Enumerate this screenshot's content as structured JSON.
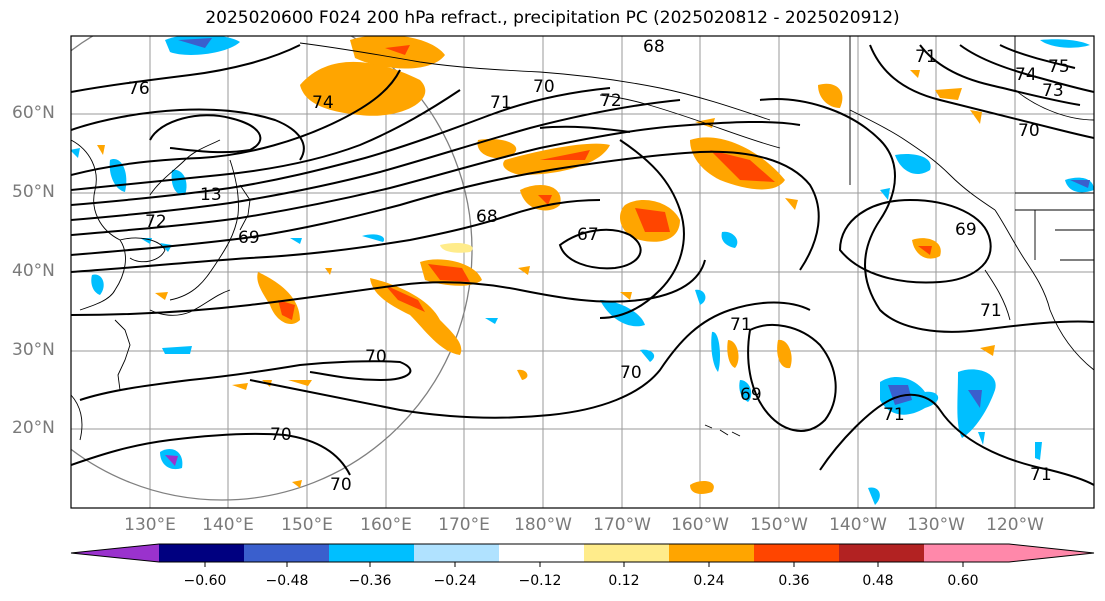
{
  "title": "2025020600 F024 200 hPa refract., precipitation PC (2025020812 - 2025020912)",
  "lat_labels": [
    "60°N",
    "50°N",
    "40°N",
    "30°N",
    "20°N"
  ],
  "lon_labels": [
    "130°E",
    "140°E",
    "150°E",
    "160°E",
    "170°E",
    "180°W",
    "170°W",
    "160°W",
    "150°W",
    "140°W",
    "130°W",
    "120°W"
  ],
  "contour_labels": [
    "76",
    "74",
    "72",
    "71",
    "70",
    "69",
    "68",
    "67",
    "73",
    "75",
    "70",
    "72",
    "71",
    "71",
    "70",
    "69",
    "13",
    "68",
    "69",
    "70",
    "71",
    "71",
    "70",
    "70",
    "74",
    "71"
  ],
  "colorbar": {
    "tick_labels": [
      "−0.60",
      "−0.48",
      "−0.36",
      "−0.24",
      "−0.12",
      "0.12",
      "0.24",
      "0.36",
      "0.48",
      "0.60"
    ],
    "colors": [
      "#9a32cd",
      "#000080",
      "#3a5fcd",
      "#00bfff",
      "#b0e2ff",
      "#ffffff",
      "#ffec8b",
      "#ffa500",
      "#ff4500",
      "#b22222",
      "#ff88aa"
    ]
  },
  "shading_colors": {
    "light_blue": "#b0e2ff",
    "blue": "#00bfff",
    "mid_blue": "#3a5fcd",
    "navy": "#000080",
    "purple": "#9a32cd",
    "yellow": "#ffec8b",
    "orange": "#ffa500",
    "red_orange": "#ff4500",
    "dark_red": "#b22222"
  }
}
